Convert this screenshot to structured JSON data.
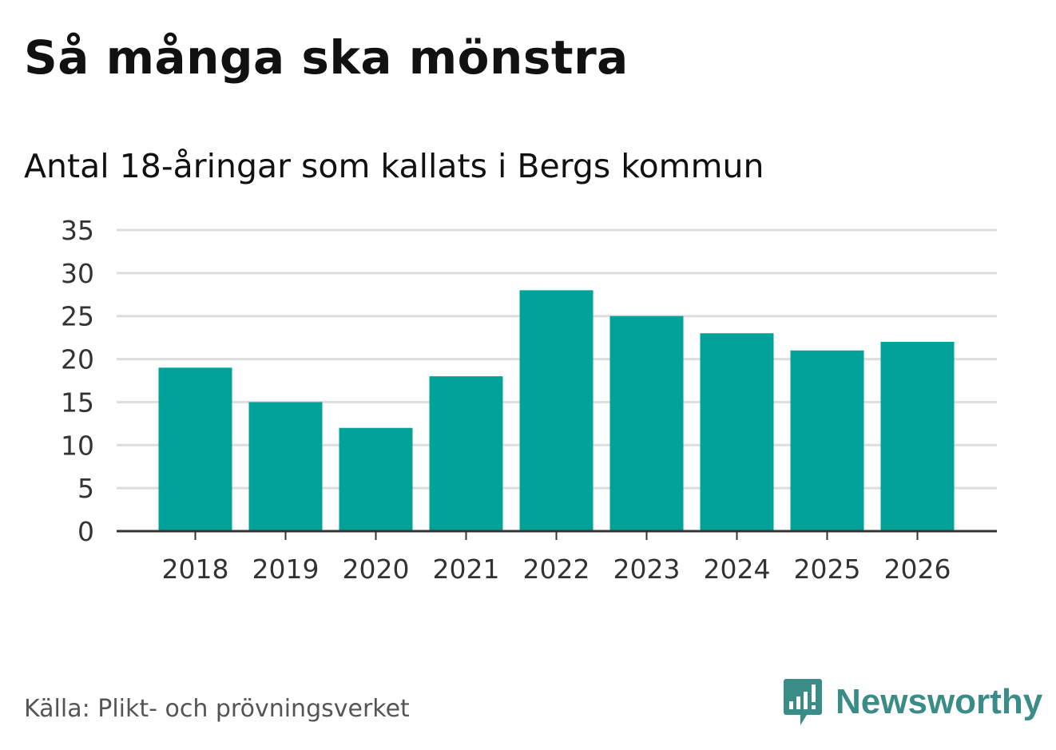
{
  "header": {
    "title": "Så många ska mönstra",
    "subtitle": "Antal 18-åringar som kallats i Bergs kommun"
  },
  "footer": {
    "source": "Källa: Plikt- och prövningsverket",
    "brand": "Newsworthy",
    "brand_icon": "bar-chart-speech-bubble-icon"
  },
  "colors": {
    "bar": "#00a29a",
    "grid": "#dddddd",
    "axis": "#333333",
    "brand": "#3a8c86"
  },
  "chart_data": {
    "type": "bar",
    "title": "Så många ska mönstra",
    "subtitle": "Antal 18-åringar som kallats i Bergs kommun",
    "xlabel": "",
    "ylabel": "",
    "categories": [
      "2018",
      "2019",
      "2020",
      "2021",
      "2022",
      "2023",
      "2024",
      "2025",
      "2026"
    ],
    "values": [
      19,
      15,
      12,
      18,
      28,
      25,
      23,
      21,
      22
    ],
    "ylim": [
      0,
      35
    ],
    "yticks": [
      0,
      5,
      10,
      15,
      20,
      25,
      30,
      35
    ],
    "grid": true,
    "legend": "none"
  }
}
